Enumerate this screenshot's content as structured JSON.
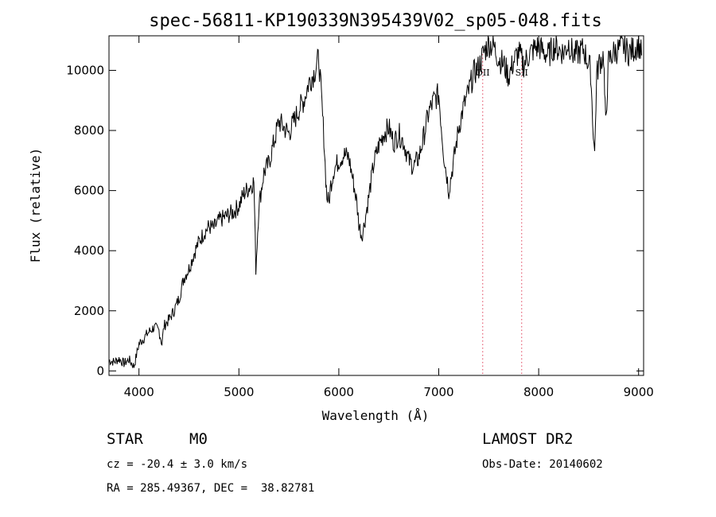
{
  "chart_data": {
    "type": "line",
    "title": "spec-56811-KP190339N395439V02_sp05-048.fits",
    "xlabel": "Wavelength (Å)",
    "ylabel": "Flux (relative)",
    "xlim": [
      3700,
      9050
    ],
    "ylim": [
      -150,
      11150
    ],
    "x_ticks": [
      4000,
      5000,
      6000,
      7000,
      8000,
      9000
    ],
    "y_ticks": [
      0,
      2000,
      4000,
      6000,
      8000,
      10000
    ],
    "grid": false,
    "line_color": "#000000",
    "marker_color": "#e0405a",
    "markers": [
      {
        "label": "OII",
        "x": 7440
      },
      {
        "label": "SII",
        "x": 7830
      }
    ],
    "series": [
      {
        "x": [
          3700,
          3750,
          3800,
          3850,
          3900,
          3950,
          4000,
          4050,
          4100,
          4150,
          4200,
          4230,
          4250,
          4300,
          4350,
          4400,
          4450,
          4500,
          4550,
          4600,
          4650,
          4700,
          4750,
          4800,
          4850,
          4900,
          4950,
          5000,
          5050,
          5100,
          5150,
          5170,
          5200,
          5250,
          5300,
          5350,
          5400,
          5450,
          5500,
          5550,
          5600,
          5650,
          5700,
          5750,
          5800,
          5820,
          5850,
          5870,
          5880,
          5900,
          5920,
          5950,
          6000,
          6050,
          6100,
          6150,
          6180,
          6200,
          6230,
          6250,
          6300,
          6350,
          6400,
          6450,
          6500,
          6550,
          6600,
          6650,
          6700,
          6750,
          6800,
          6850,
          6900,
          6950,
          7000,
          7050,
          7080,
          7100,
          7150,
          7200,
          7250,
          7300,
          7350,
          7400,
          7450,
          7500,
          7550,
          7600,
          7650,
          7700,
          7750,
          7800,
          7850,
          7900,
          7950,
          8000,
          8050,
          8100,
          8150,
          8200,
          8250,
          8300,
          8350,
          8400,
          8450,
          8500,
          8520,
          8540,
          8560,
          8580,
          8600,
          8650,
          8660,
          8670,
          8700,
          8750,
          8800,
          8850,
          8900,
          8950,
          9000,
          9030
        ],
        "y": [
          350,
          300,
          400,
          250,
          380,
          150,
          900,
          1100,
          1300,
          1450,
          1350,
          900,
          1500,
          1700,
          2000,
          2400,
          3100,
          3400,
          3900,
          4300,
          4600,
          4800,
          4750,
          5000,
          5100,
          5200,
          5300,
          5500,
          5900,
          6100,
          6300,
          3400,
          5500,
          6600,
          6900,
          7600,
          8300,
          8100,
          7900,
          8300,
          8700,
          9000,
          9600,
          9900,
          10400,
          9400,
          7800,
          6400,
          5800,
          5600,
          6200,
          6700,
          7000,
          7200,
          7100,
          6200,
          5600,
          4900,
          4500,
          4800,
          5800,
          6900,
          7500,
          7900,
          8100,
          7600,
          7900,
          7600,
          7000,
          6800,
          7100,
          7800,
          8600,
          9000,
          9200,
          7200,
          6500,
          6000,
          7000,
          8100,
          8800,
          9300,
          9900,
          10100,
          10600,
          10900,
          10800,
          10400,
          10200,
          9800,
          10300,
          10600,
          10200,
          10500,
          10700,
          10800,
          10600,
          10500,
          10800,
          10700,
          10600,
          10900,
          10500,
          10600,
          10700,
          10200,
          10000,
          8400,
          7200,
          9800,
          10200,
          10500,
          9200,
          8200,
          10300,
          10600,
          10700,
          10800,
          10600,
          10700,
          10900,
          10500
        ]
      }
    ]
  },
  "info": {
    "class": "STAR",
    "subclass": "M0",
    "survey": "LAMOST DR2",
    "cz": "cz = -20.4 ± 3.0 km/s",
    "obsdate": "Obs-Date: 20140602",
    "radec": "RA = 285.49367, DEC =  38.82781"
  }
}
